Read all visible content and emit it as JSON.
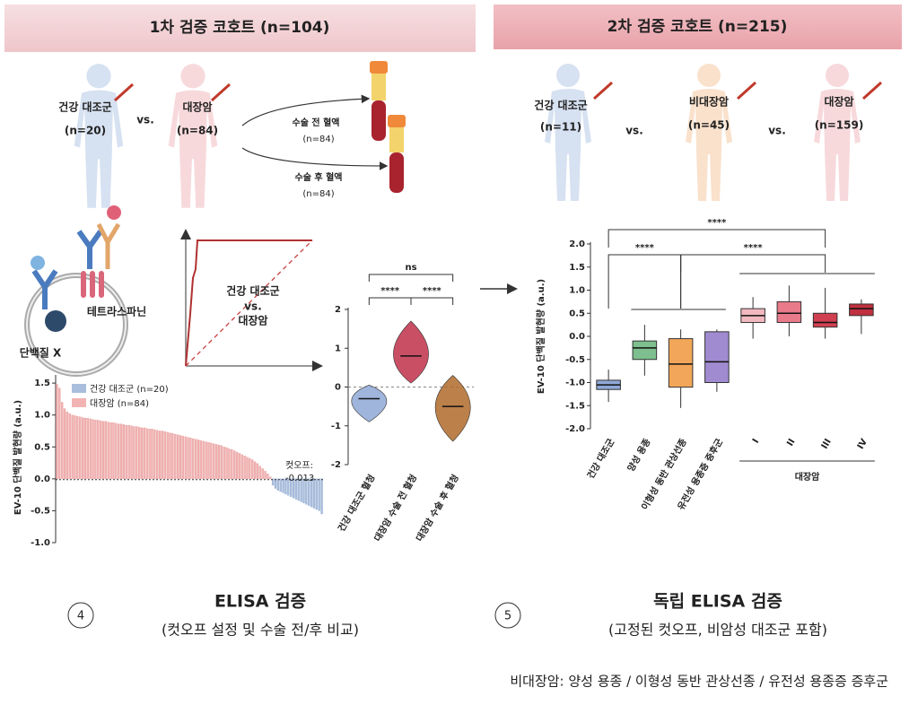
{
  "header": {
    "left": "1차 검증 코호트 (n=104)",
    "right": "2차 검증 코호트 (n=215)"
  },
  "cohort1": {
    "healthy": "건강 대조군",
    "healthy_n": "(n=20)",
    "vs": "vs.",
    "cancer": "대장암",
    "cancer_n": "(n=84)",
    "pre": "수술 전 혈액",
    "pre_n": "(n=84)",
    "post": "수술 후 혈액",
    "post_n": "(n=84)"
  },
  "cohort2": {
    "healthy": "건강 대조군",
    "healthy_n": "(n=11)",
    "vs1": "vs.",
    "noncrc": "비대장암",
    "noncrc_n": "(n=45)",
    "vs2": "vs.",
    "crc": "대장암",
    "crc_n": "(n=159)"
  },
  "diagram": {
    "tetraspanin": "테트라스파닌",
    "protein": "단백질 X",
    "roc": [
      "건강 대조군",
      "vs.",
      "대장암"
    ]
  },
  "panels": [
    {
      "number": "4",
      "title": "ELISA 검증",
      "subtitle": "(컷오프 설정 및 수술 전/후 비교)"
    },
    {
      "number": "5",
      "title": "독립 ELISA 검증",
      "subtitle": "(고정된 컷오프, 비암성 대조군 포함)"
    }
  ],
  "footnote": "비대장암: 양성 용종 / 이형성 동반 관상선종 / 유전성 용종증 증후군",
  "chart_data": [
    {
      "type": "bar",
      "ylabel": "EV-10 단백질 발현량 (a.u.)",
      "ylim": [
        -1,
        1.6
      ],
      "yticks": [
        1.5,
        {
          "value": 1,
          "label": "1.0"
        },
        0.5,
        {
          "value": 0,
          "label": "0.0"
        },
        -0.5,
        {
          "value": -1,
          "label": "-1.0"
        }
      ],
      "series": [
        {
          "name": "건강 대조군 (n=20)",
          "color": "#a9bedc",
          "values": [
            -0.1,
            -0.15,
            -0.18,
            -0.2,
            -0.22,
            -0.24,
            -0.26,
            -0.28,
            -0.3,
            -0.32,
            -0.34,
            -0.36,
            -0.38,
            -0.4,
            -0.42,
            -0.44,
            -0.46,
            -0.48,
            -0.5,
            -0.55
          ]
        },
        {
          "name": "대장암 (n=84)",
          "color": "#f2b3b3",
          "values": [
            1.48,
            1.42,
            1.2,
            1.1,
            1.05,
            1.02,
            1.0,
            0.99,
            0.98,
            0.97,
            0.96,
            0.95,
            0.95,
            0.94,
            0.93,
            0.92,
            0.92,
            0.91,
            0.9,
            0.9,
            0.89,
            0.88,
            0.88,
            0.87,
            0.86,
            0.86,
            0.85,
            0.84,
            0.84,
            0.83,
            0.82,
            0.82,
            0.81,
            0.8,
            0.8,
            0.79,
            0.78,
            0.78,
            0.77,
            0.76,
            0.75,
            0.75,
            0.74,
            0.73,
            0.72,
            0.71,
            0.7,
            0.69,
            0.68,
            0.67,
            0.66,
            0.65,
            0.64,
            0.63,
            0.62,
            0.61,
            0.6,
            0.59,
            0.58,
            0.57,
            0.56,
            0.55,
            0.54,
            0.53,
            0.52,
            0.5,
            0.49,
            0.47,
            0.46,
            0.44,
            0.42,
            0.4,
            0.38,
            0.36,
            0.34,
            0.32,
            0.3,
            0.27,
            0.24,
            0.2,
            0.16,
            0.12,
            0.08,
            0.03
          ]
        }
      ],
      "cutoff": -0.013,
      "cutoff_label": "컷오프:"
    },
    {
      "type": "violin",
      "ylim": [
        -2,
        2
      ],
      "yticks": [
        2,
        1,
        0,
        -1,
        -2
      ],
      "categories": [
        "건강 대조군 혈청",
        "대장암 수술 전 혈청",
        "대장암 수술 후 혈청"
      ],
      "colors": [
        "#8fa8d6",
        "#c0304a",
        "#b06a2a"
      ],
      "values": [
        {
          "min": -0.9,
          "median": -0.3,
          "max": 0.05
        },
        {
          "min": 0.1,
          "median": 0.8,
          "max": 1.7
        },
        {
          "min": -1.4,
          "median": -0.5,
          "max": 0.3
        }
      ],
      "significance": [
        "ns",
        "****",
        "****"
      ]
    },
    {
      "type": "box",
      "ylabel": "EV-10 단백질 발현량 (a.u.)",
      "ylim": [
        -2,
        2
      ],
      "yticks": [
        {
          "value": 2,
          "label": "2.0"
        },
        1.5,
        {
          "value": 1,
          "label": "1.0"
        },
        0.5,
        {
          "value": 0,
          "label": "0.0"
        },
        -0.5,
        {
          "value": -1,
          "label": "-1.0"
        },
        -1.5,
        {
          "value": -2,
          "label": "-2.0"
        }
      ],
      "categories": [
        "건강 대조군",
        "양성 용종",
        "이형성 동반 관상선종",
        "유전성 용종증 증후군",
        "I",
        "II",
        "III",
        "IV"
      ],
      "boxes": [
        {
          "min": -1.42,
          "q1": -1.15,
          "median": -1.05,
          "q3": -0.95,
          "max": -0.72,
          "color": "#8fa8d6"
        },
        {
          "min": -0.85,
          "q1": -0.5,
          "median": -0.25,
          "q3": -0.1,
          "max": 0.25,
          "color": "#7dbf8e"
        },
        {
          "min": -1.55,
          "q1": -1.1,
          "median": -0.6,
          "q3": -0.05,
          "max": 0.15,
          "color": "#f2a65a"
        },
        {
          "min": -1.2,
          "q1": -1.0,
          "median": -0.55,
          "q3": 0.1,
          "max": 0.15,
          "color": "#a08bd0"
        },
        {
          "min": -0.05,
          "q1": 0.3,
          "median": 0.45,
          "q3": 0.6,
          "max": 0.85,
          "color": "#f2b8c0"
        },
        {
          "min": 0.0,
          "q1": 0.3,
          "median": 0.5,
          "q3": 0.75,
          "max": 1.1,
          "color": "#e87a8a"
        },
        {
          "min": -0.05,
          "q1": 0.2,
          "median": 0.3,
          "q3": 0.5,
          "max": 1.05,
          "color": "#d04050"
        },
        {
          "min": 0.05,
          "q1": 0.45,
          "median": 0.6,
          "q3": 0.7,
          "max": 0.8,
          "color": "#c0303e"
        }
      ],
      "group_label": "대장암",
      "significance": [
        "****",
        "****",
        "****"
      ]
    }
  ]
}
